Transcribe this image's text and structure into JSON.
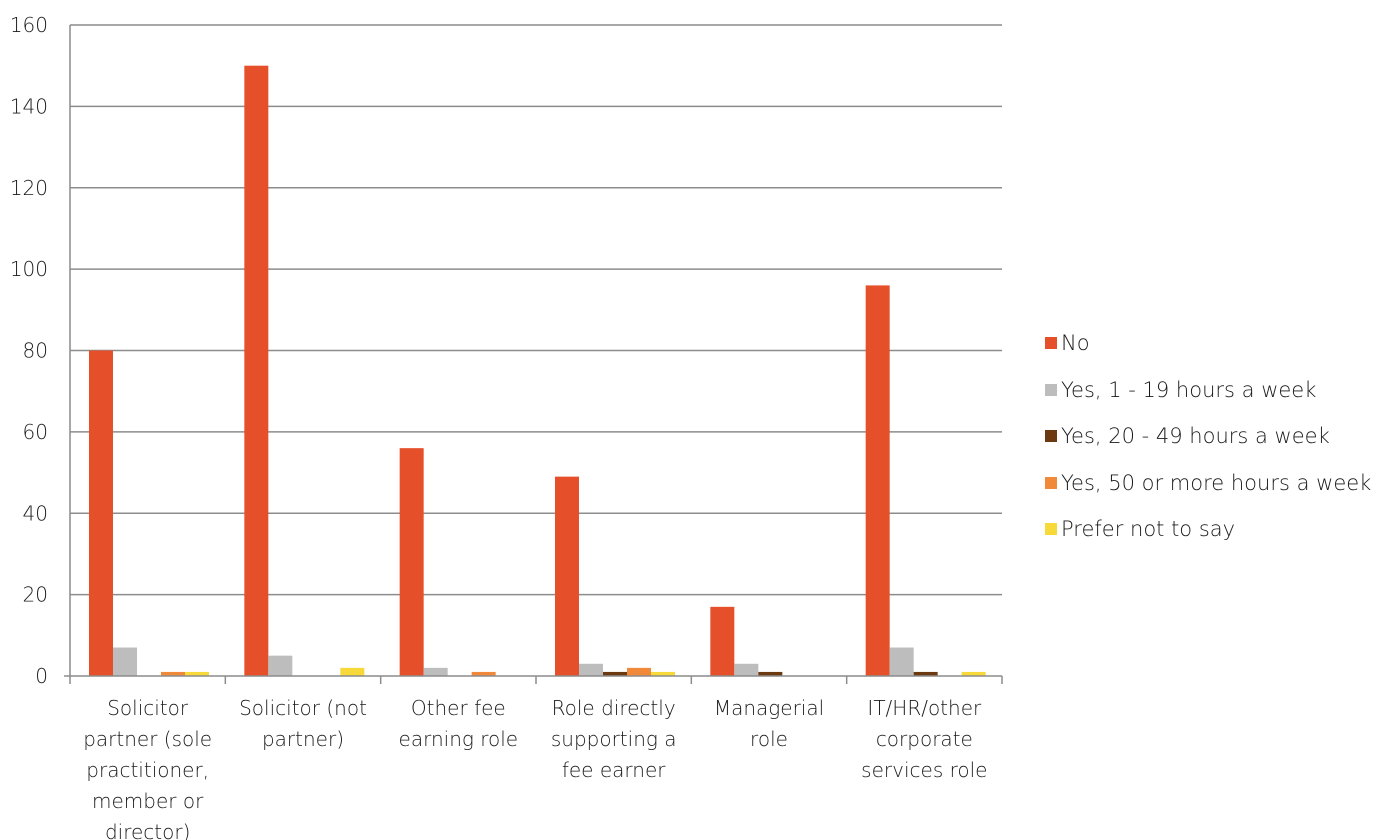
{
  "chart_data": {
    "type": "bar",
    "categories": [
      [
        "Solicitor",
        "partner (sole",
        "practitioner,",
        "member or",
        "director)"
      ],
      [
        "Solicitor (not",
        "partner)"
      ],
      [
        "Other fee",
        "earning role"
      ],
      [
        "Role directly",
        "supporting a",
        "fee earner"
      ],
      [
        "Managerial",
        "role"
      ],
      [
        "IT/HR/other",
        "corporate",
        "services role"
      ]
    ],
    "series": [
      {
        "name": "No",
        "color": "#E5502A",
        "values": [
          80,
          150,
          56,
          49,
          17,
          96
        ]
      },
      {
        "name": "Yes, 1 - 19 hours a week",
        "color": "#BDBDBD",
        "values": [
          7,
          5,
          2,
          3,
          3,
          7
        ]
      },
      {
        "name": "Yes, 20 - 49 hours a week",
        "color": "#6B3A10",
        "values": [
          0,
          0,
          0,
          1,
          1,
          1
        ]
      },
      {
        "name": "Yes, 50 or more hours a week",
        "color": "#F08A3A",
        "values": [
          1,
          0,
          1,
          2,
          0,
          0
        ]
      },
      {
        "name": "Prefer not to say",
        "color": "#F7D93A",
        "values": [
          1,
          2,
          0,
          1,
          0,
          1
        ]
      }
    ],
    "ylim": [
      0,
      160
    ],
    "yticks": [
      "0",
      "20",
      "40",
      "60",
      "80",
      "100",
      "120",
      "140",
      "160"
    ],
    "grid": true,
    "legend_position": "right"
  }
}
